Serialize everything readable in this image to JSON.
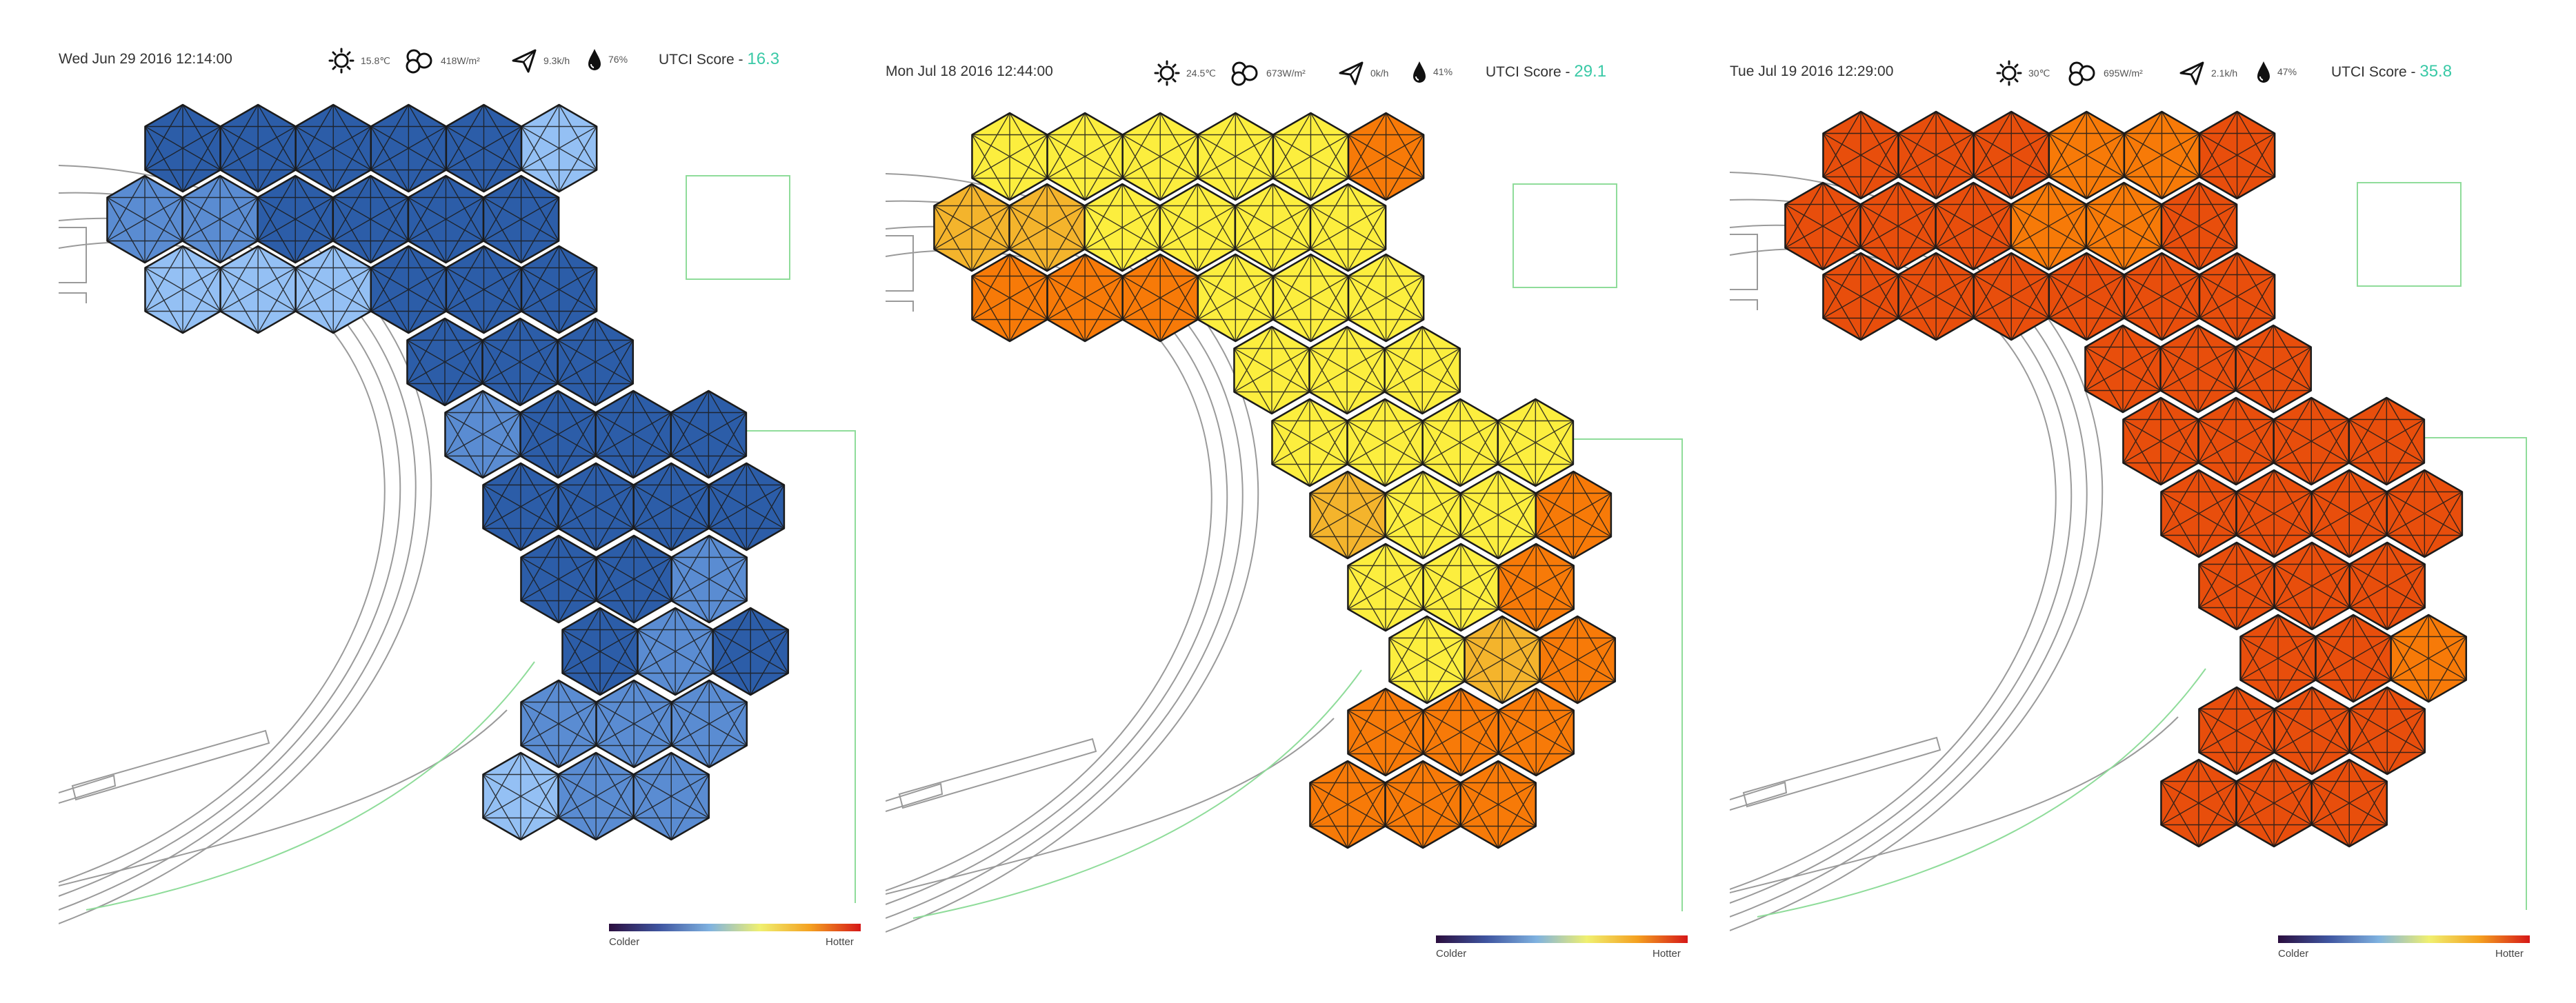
{
  "colors": {
    "utci_accent": "#39c9a6",
    "scale_gradient": [
      "#2b0e3e",
      "#3f55a0",
      "#7fb2e0",
      "#f0f070",
      "#f4a020",
      "#d61818"
    ],
    "cold": [
      "#94c0f4",
      "#5a8cd2",
      "#2c5da8"
    ],
    "hot": [
      "#fcee3e",
      "#f4b42c",
      "#f77a08",
      "#e84e0c"
    ]
  },
  "scale": {
    "colder_label": "Colder",
    "hotter_label": "Hotter"
  },
  "utci_label": "UTCI Score - ",
  "icons": [
    "sun-icon",
    "clouds-icon",
    "wind-arrow-icon",
    "humidity-drop-icon"
  ],
  "panels": [
    {
      "timestamp": "Wed Jun 29 2016 12:14:00",
      "temperature": "15.8℃",
      "radiation": "418W/m²",
      "wind": "9.3k/h",
      "humidity": "76%",
      "utci_score": "16.3",
      "hex_shades": [
        [
          2,
          2,
          2,
          2,
          2,
          0
        ],
        [
          1,
          1,
          2,
          2,
          2,
          2
        ],
        [
          0,
          0,
          0,
          2,
          2,
          2
        ],
        [
          2,
          2,
          2
        ],
        [
          1,
          2,
          2,
          2
        ],
        [
          2,
          2,
          2,
          2
        ],
        [
          2,
          2,
          1
        ],
        [
          2,
          1,
          2
        ],
        [
          1,
          1,
          1
        ],
        [
          0,
          1,
          1
        ]
      ]
    },
    {
      "timestamp": "Mon Jul 18 2016 12:44:00",
      "temperature": "24.5℃",
      "radiation": "673W/m²",
      "wind": "0k/h",
      "humidity": "41%",
      "utci_score": "29.1",
      "hex_shades": [
        [
          0,
          0,
          0,
          0,
          0,
          2
        ],
        [
          1,
          1,
          0,
          0,
          0,
          0
        ],
        [
          2,
          2,
          2,
          0,
          0,
          0
        ],
        [
          0,
          0,
          0
        ],
        [
          0,
          0,
          0,
          0
        ],
        [
          1,
          0,
          0,
          2
        ],
        [
          0,
          0,
          2
        ],
        [
          0,
          1,
          2
        ],
        [
          2,
          2,
          2
        ],
        [
          2,
          2,
          2
        ]
      ]
    },
    {
      "timestamp": "Tue Jul 19 2016 12:29:00",
      "temperature": "30℃",
      "radiation": "695W/m²",
      "wind": "2.1k/h",
      "humidity": "47%",
      "utci_score": "35.8",
      "hex_shades": [
        [
          3,
          3,
          3,
          2,
          2,
          3
        ],
        [
          3,
          3,
          3,
          2,
          2,
          3
        ],
        [
          3,
          3,
          3,
          3,
          3,
          3
        ],
        [
          3,
          3,
          3
        ],
        [
          3,
          3,
          3,
          3
        ],
        [
          3,
          3,
          3,
          3
        ],
        [
          3,
          3,
          3
        ],
        [
          3,
          3,
          2
        ],
        [
          3,
          3,
          3
        ],
        [
          3,
          3,
          3
        ]
      ]
    }
  ]
}
